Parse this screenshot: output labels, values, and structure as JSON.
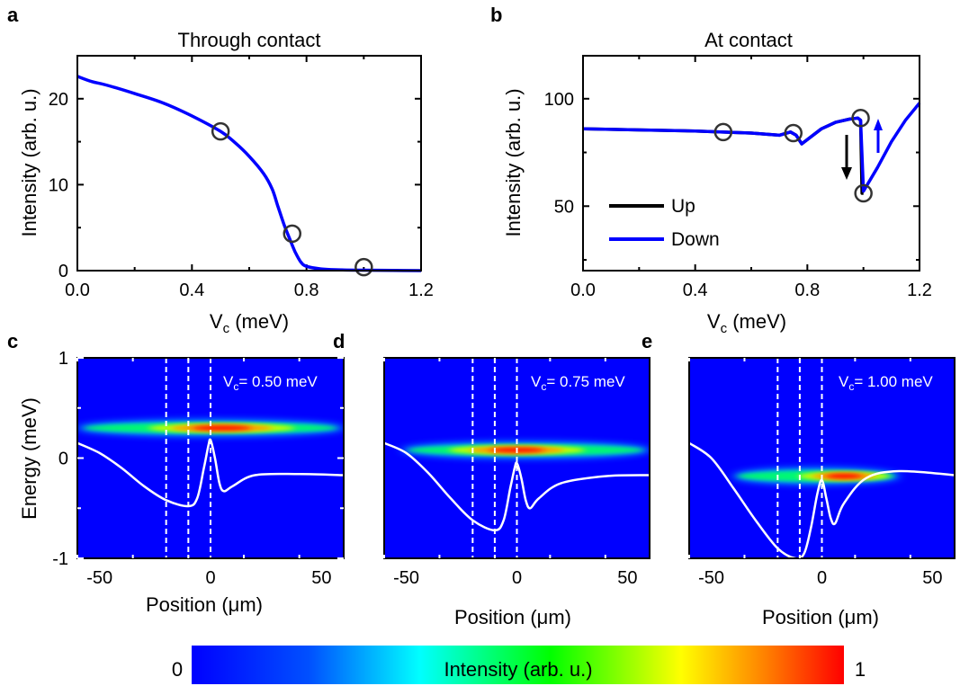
{
  "chart_data": [
    {
      "panel": "a",
      "type": "line",
      "title": "Through contact",
      "xlabel": "V",
      "xlabel_sub": "c",
      "xlabel_unit": " (meV)",
      "ylabel": "Intensity (arb. u.)",
      "xlim": [
        0,
        1.2
      ],
      "ylim": [
        0,
        25
      ],
      "xticks": [
        "0.0",
        "0.4",
        "0.8",
        "1.2"
      ],
      "yticks": [
        "0",
        "10",
        "20"
      ],
      "series": [
        {
          "color": "#0000ff",
          "x": [
            0,
            0.05,
            0.1,
            0.2,
            0.3,
            0.4,
            0.5,
            0.55,
            0.6,
            0.65,
            0.68,
            0.7,
            0.72,
            0.74,
            0.76,
            0.78,
            0.8,
            0.85,
            0.9,
            1.0,
            1.1,
            1.2
          ],
          "y": [
            22.6,
            22.0,
            21.6,
            20.6,
            19.5,
            18.0,
            16.2,
            14.9,
            13.3,
            11.3,
            9.5,
            7.5,
            5.5,
            3.8,
            2.2,
            1.0,
            0.5,
            0.2,
            0.1,
            0.05,
            0.02,
            0.0
          ]
        }
      ],
      "markers": [
        {
          "x": 0.5,
          "y": 16.2
        },
        {
          "x": 0.75,
          "y": 4.3
        },
        {
          "x": 1.0,
          "y": 0.4
        }
      ]
    },
    {
      "panel": "b",
      "type": "line",
      "title": "At contact",
      "xlabel": "V",
      "xlabel_sub": "c",
      "xlabel_unit": " (meV)",
      "ylabel": "Intensity (arb. u.)",
      "xlim": [
        0,
        1.2
      ],
      "ylim": [
        20,
        120
      ],
      "xticks": [
        "0.0",
        "0.4",
        "0.8",
        "1.2"
      ],
      "yticks": [
        "50",
        "100"
      ],
      "legend_position": "lower-left",
      "series": [
        {
          "name": "Up",
          "color": "#000000",
          "x": [
            0,
            0.2,
            0.4,
            0.6,
            0.7,
            0.74,
            0.76,
            0.78,
            0.8,
            0.85,
            0.9,
            0.95,
            0.98,
            0.99,
            0.995,
            1.0
          ],
          "y": [
            86,
            85.5,
            85,
            84,
            83,
            84.5,
            83,
            79,
            81,
            86,
            89,
            90.5,
            91,
            90,
            56,
            56
          ]
        },
        {
          "name": "Down",
          "color": "#0000ff",
          "x": [
            0,
            0.2,
            0.4,
            0.6,
            0.7,
            0.74,
            0.76,
            0.78,
            0.8,
            0.85,
            0.9,
            0.95,
            0.98,
            0.99,
            1.0,
            1.05,
            1.1,
            1.15,
            1.2
          ],
          "y": [
            86,
            85.5,
            85,
            84,
            83,
            84.5,
            83,
            79,
            81,
            86,
            89,
            90.5,
            91,
            90,
            57,
            68,
            80,
            90,
            98
          ]
        }
      ],
      "markers": [
        {
          "x": 0.5,
          "y": 84.5
        },
        {
          "x": 0.75,
          "y": 84
        },
        {
          "x": 0.99,
          "y": 91
        },
        {
          "x": 1.0,
          "y": 56
        }
      ]
    },
    {
      "panel": "c",
      "type": "heatmap",
      "annotation": "= 0.50 meV",
      "annotation_prefix": "V",
      "annotation_sub": "c",
      "xlabel": "Position (μm)",
      "ylabel": "Energy (meV)",
      "xlim": [
        -60,
        60
      ],
      "ylim": [
        -1,
        1
      ],
      "xticks": [
        "-50",
        "0",
        "50"
      ],
      "yticks": [
        "-1",
        "0",
        "1"
      ],
      "band": {
        "energy": 0.3,
        "x_range": [
          -60,
          60
        ],
        "peak_x": 5
      },
      "potential": {
        "x": [
          -60,
          -50,
          -40,
          -30,
          -20,
          -10,
          -6,
          -3,
          -1,
          0,
          2,
          4,
          6,
          10,
          20,
          40,
          60
        ],
        "y": [
          0.15,
          0.05,
          -0.1,
          -0.28,
          -0.42,
          -0.48,
          -0.4,
          -0.1,
          0.12,
          0.18,
          0.0,
          -0.25,
          -0.33,
          -0.28,
          -0.17,
          -0.16,
          -0.17
        ]
      },
      "dashed_x": [
        -20,
        -10,
        0
      ]
    },
    {
      "panel": "d",
      "type": "heatmap",
      "annotation": "= 0.75 meV",
      "annotation_prefix": "V",
      "annotation_sub": "c",
      "xlabel": "Position (μm)",
      "xlim": [
        -60,
        60
      ],
      "ylim": [
        -1,
        1
      ],
      "xticks": [
        "-50",
        "0",
        "50"
      ],
      "band": {
        "energy": 0.08,
        "x_range": [
          -52,
          60
        ],
        "peak_x": 0
      },
      "potential": {
        "x": [
          -60,
          -50,
          -40,
          -30,
          -20,
          -10,
          -6,
          -3,
          -1,
          0,
          2,
          4,
          6,
          10,
          20,
          40,
          60
        ],
        "y": [
          0.15,
          0.05,
          -0.15,
          -0.4,
          -0.62,
          -0.72,
          -0.62,
          -0.3,
          -0.1,
          -0.05,
          -0.2,
          -0.42,
          -0.5,
          -0.4,
          -0.25,
          -0.18,
          -0.17
        ]
      },
      "dashed_x": [
        -20,
        -10,
        0
      ]
    },
    {
      "panel": "e",
      "type": "heatmap",
      "annotation": "= 1.00 meV",
      "annotation_prefix": "V",
      "annotation_sub": "c",
      "xlabel": "Position (μm)",
      "xlim": [
        -60,
        60
      ],
      "ylim": [
        -1,
        1
      ],
      "xticks": [
        "-50",
        "0",
        "50"
      ],
      "band": {
        "energy": -0.18,
        "x_range": [
          -40,
          35
        ],
        "peak_x": 10
      },
      "potential": {
        "x": [
          -60,
          -50,
          -40,
          -30,
          -20,
          -12,
          -8,
          -5,
          -2,
          0,
          2,
          4,
          6,
          10,
          20,
          35,
          60
        ],
        "y": [
          0.15,
          0.0,
          -0.3,
          -0.62,
          -0.9,
          -1.0,
          -0.95,
          -0.7,
          -0.35,
          -0.22,
          -0.4,
          -0.6,
          -0.65,
          -0.45,
          -0.2,
          -0.13,
          -0.17
        ]
      },
      "dashed_x": [
        -20,
        -10,
        0
      ]
    }
  ],
  "panel_labels": [
    "a",
    "b",
    "c",
    "d",
    "e"
  ],
  "colorbar": {
    "label": "Intensity (arb. u.)",
    "min_label": "0",
    "max_label": "1",
    "colors": [
      "#0000ff",
      "#00ffff",
      "#00ff00",
      "#ffff00",
      "#ff0000"
    ]
  }
}
